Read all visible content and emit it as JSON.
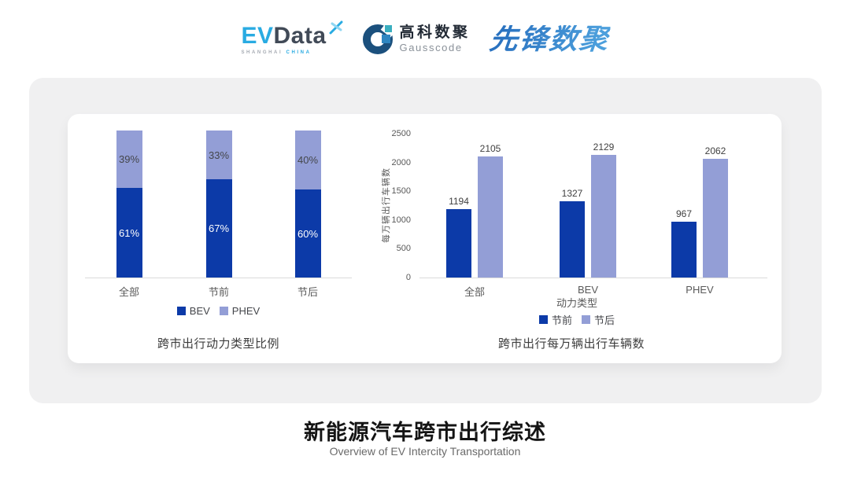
{
  "header": {
    "evdata": {
      "ev": "EV",
      "data": "Data",
      "sub1": "SHANGHAI",
      "sub2": "CHINA"
    },
    "gausscode": {
      "cn": "高科数聚",
      "en": "Gausscode"
    },
    "pioneer": {
      "text": "先锋数聚"
    }
  },
  "colors": {
    "series_dark": "#0C3AA8",
    "series_light": "#939ED6",
    "card_background": "#F0F0F1",
    "axis_line": "#DBDBDB",
    "tick_text": "#595959",
    "value_text": "#3F3F3F"
  },
  "chart_data": [
    {
      "type": "bar",
      "subtype": "stacked-percent",
      "title": "跨市出行动力类型比例",
      "categories": [
        "全部",
        "节前",
        "节后"
      ],
      "series": [
        {
          "name": "BEV",
          "color": "#0C3AA8",
          "values": [
            61,
            67,
            60
          ]
        },
        {
          "name": "PHEV",
          "color": "#939ED6",
          "values": [
            39,
            33,
            40
          ]
        }
      ],
      "value_suffix": "%",
      "ylim": [
        0,
        100
      ],
      "grid": false,
      "legend_position": "bottom"
    },
    {
      "type": "bar",
      "subtype": "grouped",
      "title": "跨市出行每万辆出行车辆数",
      "categories": [
        "全部",
        "BEV",
        "PHEV"
      ],
      "series": [
        {
          "name": "节前",
          "color": "#0C3AA8",
          "values": [
            1194,
            1327,
            967
          ]
        },
        {
          "name": "节后",
          "color": "#939ED6",
          "values": [
            2105,
            2129,
            2062
          ]
        }
      ],
      "xlabel": "动力类型",
      "ylabel": "每万辆出行车辆数",
      "yticks": [
        0,
        500,
        1000,
        1500,
        2000,
        2500
      ],
      "ylim": [
        0,
        2500
      ],
      "grid": false,
      "legend_position": "bottom"
    }
  ],
  "footer": {
    "title": "新能源汽车跨市出行综述",
    "subtitle": "Overview of EV Intercity Transportation"
  }
}
